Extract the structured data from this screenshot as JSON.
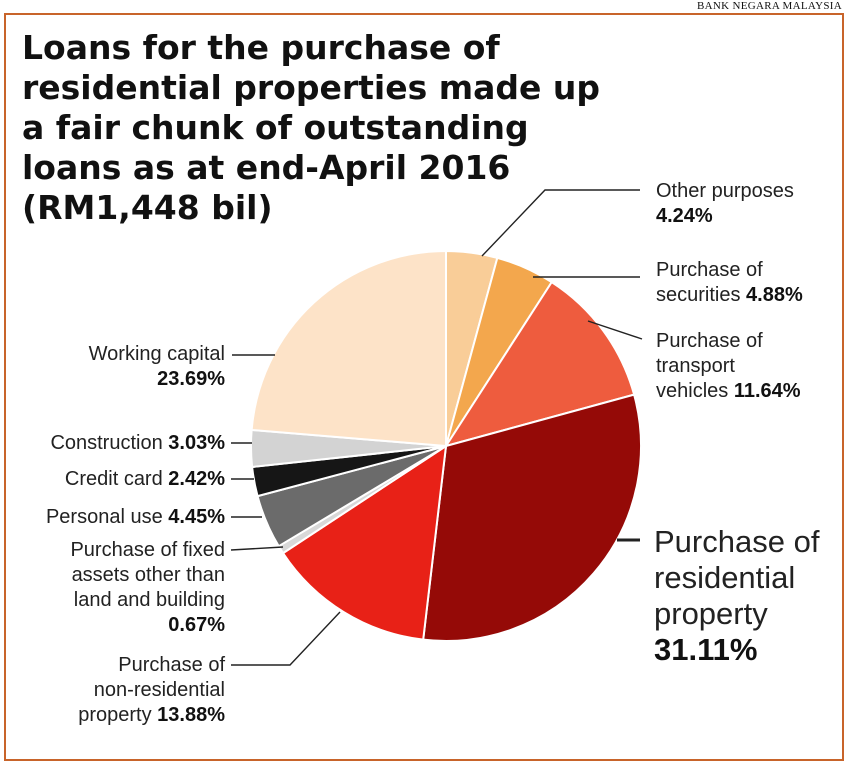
{
  "source": "BANK NEGARA MALAYSIA",
  "title": "Loans for the purchase of residential properties made up a fair chunk of outstanding loans as at end-April 2016 (RM1,448 bil)",
  "chart_data": {
    "type": "pie",
    "title": "Loans for the purchase of residential properties made up a fair chunk of outstanding loans as at end-April 2016 (RM1,448 bil)",
    "unit": "%",
    "slices": [
      {
        "label": "Other purposes",
        "value": 4.24,
        "display": "4.24%",
        "color": "#f9cd98"
      },
      {
        "label": "Purchase of securities",
        "value": 4.88,
        "display": "4.88%",
        "color": "#f3a74d"
      },
      {
        "label": "Purchase of transport vehicles",
        "value": 11.64,
        "display": "11.64%",
        "color": "#ee5c3e"
      },
      {
        "label": "Purchase of residential property",
        "value": 31.11,
        "display": "31.11%",
        "color": "#950a07"
      },
      {
        "label": "Purchase of non-residential property",
        "value": 13.88,
        "display": "13.88%",
        "color": "#e82117"
      },
      {
        "label": "Purchase of fixed assets other than land and building",
        "value": 0.67,
        "display": "0.67%",
        "color": "#d8d8d8"
      },
      {
        "label": "Personal use",
        "value": 4.45,
        "display": "4.45%",
        "color": "#6b6b6b"
      },
      {
        "label": "Credit card",
        "value": 2.42,
        "display": "2.42%",
        "color": "#161616"
      },
      {
        "label": "Construction",
        "value": 3.03,
        "display": "3.03%",
        "color": "#d3d3d3"
      },
      {
        "label": "Working capital",
        "value": 23.69,
        "display": "23.69%",
        "color": "#fde3c8"
      }
    ]
  },
  "labels": {
    "other_purposes": {
      "line1": "Other purposes",
      "value": "4.24%"
    },
    "securities": {
      "line1": "Purchase of",
      "line2": "securities",
      "value": "4.88%"
    },
    "transport": {
      "line1": "Purchase of",
      "line2": "transport",
      "line3": "vehicles",
      "value": "11.64%"
    },
    "residential": {
      "line1": "Purchase of",
      "line2": "residential",
      "line3": "property",
      "value": "31.11%"
    },
    "working_capital": {
      "line1": "Working capital",
      "value": "23.69%"
    },
    "construction": {
      "line1": "Construction",
      "value": "3.03%"
    },
    "credit_card": {
      "line1": "Credit card",
      "value": "2.42%"
    },
    "personal_use": {
      "line1": "Personal use",
      "value": "4.45%"
    },
    "fixed_assets": {
      "line1": "Purchase of fixed",
      "line2": "assets other than",
      "line3": "land and building",
      "value": "0.67%"
    },
    "non_residential": {
      "line1": "Purchase of",
      "line2": "non-residential",
      "line3": "property",
      "value": "13.88%"
    }
  },
  "colors": {
    "frame": "#c8642a",
    "leader": "#222222"
  }
}
